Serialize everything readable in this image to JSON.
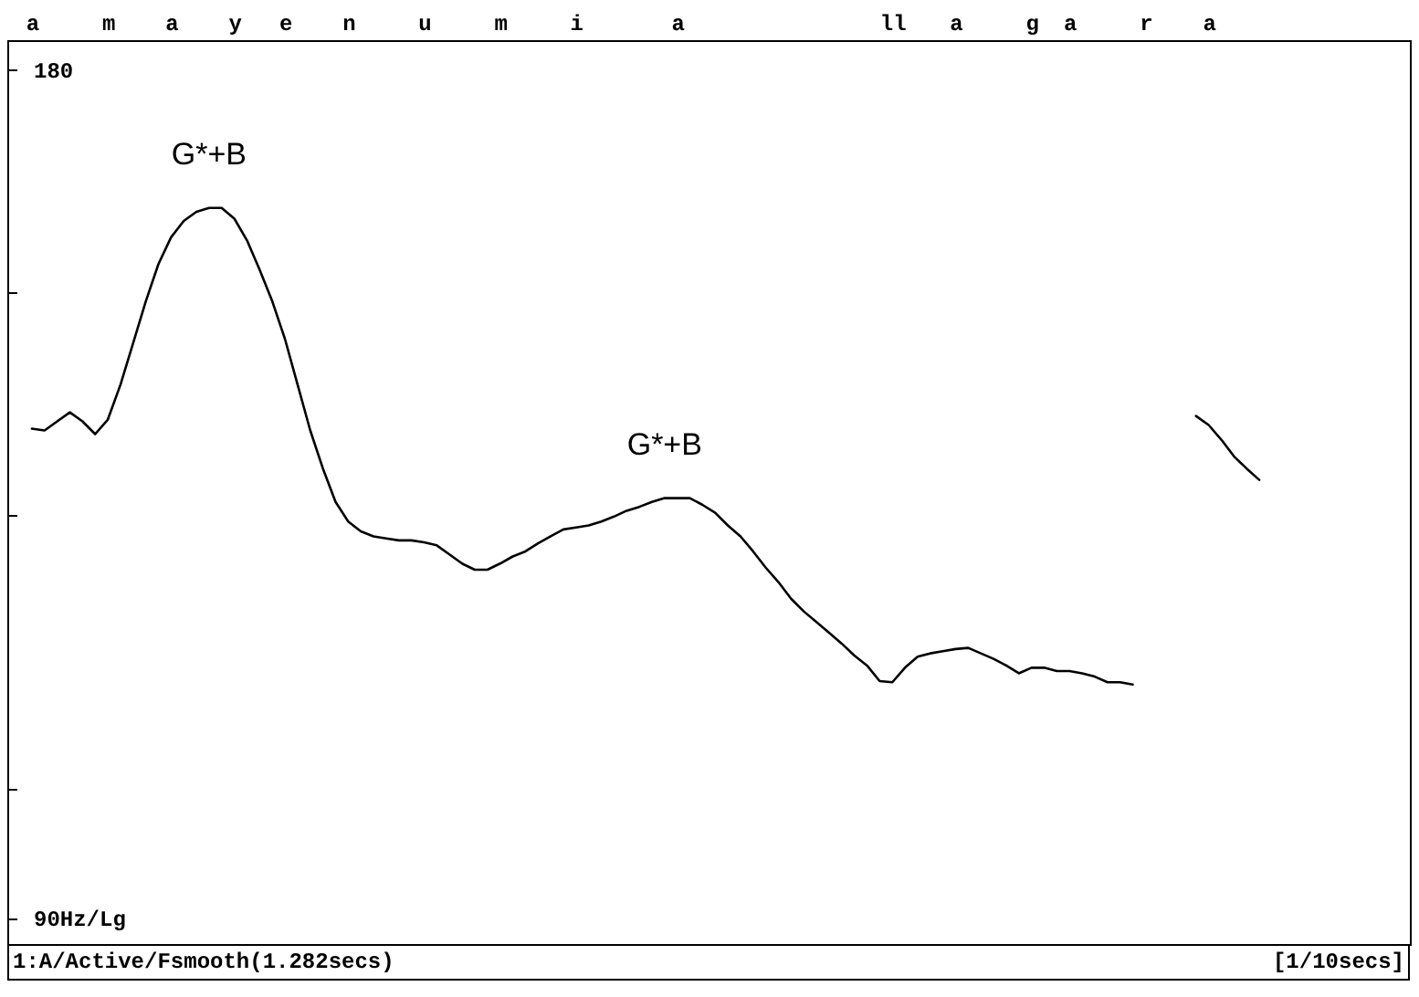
{
  "chart_data": {
    "type": "line",
    "color": "#000000",
    "log": true,
    "annotations": [
      {
        "text": "G*+B",
        "y": 160.7
      },
      {
        "text": "G*+B",
        "y": 126.8
      },
      "1:A/Active/Fsmooth(1.282secs)",
      "[1/10secs]"
    ],
    "categories": [
      "a",
      null,
      null,
      null,
      null,
      null,
      "m",
      null,
      null,
      null,
      null,
      "a",
      null,
      null,
      null,
      null,
      "y",
      null,
      null,
      null,
      "e",
      null,
      null,
      null,
      null,
      "n",
      null,
      null,
      null,
      null,
      null,
      "u",
      null,
      null,
      null,
      null,
      null,
      "m",
      null,
      null,
      null,
      null,
      null,
      "i",
      null,
      null,
      null,
      null,
      null,
      null,
      null,
      "a",
      null,
      null,
      null,
      null,
      null,
      null,
      null,
      null,
      null,
      null,
      null,
      null,
      null,
      null,
      null,
      null,
      "ll",
      null,
      null,
      null,
      null,
      "a",
      null,
      null,
      null,
      null,
      null,
      "g",
      null,
      null,
      "a",
      null,
      null,
      null,
      null,
      null,
      "r",
      null,
      null,
      null,
      null,
      "a",
      null,
      null,
      null,
      null
    ],
    "values": [
      134.2,
      134.0,
      135.0,
      136.0,
      135.0,
      133.6,
      135.2,
      139.1,
      143.9,
      148.9,
      153.5,
      156.9,
      159.0,
      160.2,
      160.7,
      160.7,
      159.3,
      156.5,
      152.8,
      148.9,
      144.4,
      139.1,
      134.0,
      129.9,
      126.4,
      124.4,
      123.4,
      122.9,
      122.7,
      122.5,
      122.5,
      122.3,
      122.0,
      121.1,
      120.2,
      119.6,
      119.6,
      120.2,
      120.9,
      121.4,
      122.2,
      122.9,
      123.6,
      123.8,
      124.0,
      124.4,
      124.9,
      125.5,
      125.9,
      126.4,
      126.8,
      126.8,
      126.8,
      126.1,
      125.3,
      124.0,
      122.9,
      121.4,
      119.8,
      118.4,
      116.8,
      115.6,
      114.6,
      113.6,
      112.6,
      111.5,
      110.6,
      109.2,
      109.1,
      110.4,
      111.4,
      111.7,
      111.9,
      112.1,
      112.2,
      111.7,
      111.2,
      110.6,
      109.9,
      110.4,
      110.4,
      110.1,
      110.1,
      109.9,
      109.6,
      109.1,
      109.1,
      108.9,
      null,
      null,
      null,
      null,
      135.6,
      134.6,
      133.0,
      131.2,
      129.9,
      128.7
    ],
    "ylim": [
      88.1,
      184.3
    ],
    "yticks": [
      {
        "value": 180,
        "label": "180"
      },
      {
        "value": 150,
        "label": null
      },
      {
        "value": 125,
        "label": null
      },
      {
        "value": 100,
        "label": null
      },
      {
        "value": 90,
        "label": "90Hz/Lg"
      }
    ],
    "grid": false,
    "line_style": "solid"
  }
}
